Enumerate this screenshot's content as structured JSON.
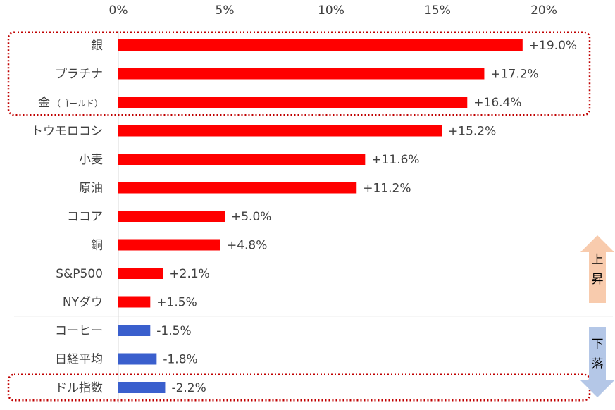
{
  "chart_data": {
    "type": "bar",
    "orientation": "horizontal",
    "x_ticks": [
      "0%",
      "5%",
      "10%",
      "15%",
      "20%"
    ],
    "xlim": [
      0,
      22.5
    ],
    "tick_values": [
      0,
      5,
      10,
      15,
      20
    ],
    "categories": [
      {
        "label": "銀",
        "suffix": "",
        "value": 19.0,
        "data_label": "+19.0%",
        "group": "up"
      },
      {
        "label": "プラチナ",
        "suffix": "",
        "value": 17.2,
        "data_label": "+17.2%",
        "group": "up"
      },
      {
        "label": "金",
        "suffix": "（ゴールド）",
        "value": 16.4,
        "data_label": "+16.4%",
        "group": "up"
      },
      {
        "label": "トウモロコシ",
        "suffix": "",
        "value": 15.2,
        "data_label": "+15.2%",
        "group": "up"
      },
      {
        "label": "小麦",
        "suffix": "",
        "value": 11.6,
        "data_label": "+11.6%",
        "group": "up"
      },
      {
        "label": "原油",
        "suffix": "",
        "value": 11.2,
        "data_label": "+11.2%",
        "group": "up"
      },
      {
        "label": "ココア",
        "suffix": "",
        "value": 5.0,
        "data_label": "+5.0%",
        "group": "up"
      },
      {
        "label": "銅",
        "suffix": "",
        "value": 4.8,
        "data_label": "+4.8%",
        "group": "up"
      },
      {
        "label": "S&P500",
        "suffix": "",
        "value": 2.1,
        "data_label": "+2.1%",
        "group": "up"
      },
      {
        "label": "NYダウ",
        "suffix": "",
        "value": 1.5,
        "data_label": "+1.5%",
        "group": "up"
      },
      {
        "label": "コーヒー",
        "suffix": "",
        "value": -1.5,
        "data_label": "-1.5%",
        "group": "down"
      },
      {
        "label": "日経平均",
        "suffix": "",
        "value": -1.8,
        "data_label": "-1.8%",
        "group": "down"
      },
      {
        "label": "ドル指数",
        "suffix": "",
        "value": -2.2,
        "data_label": "-2.2%",
        "group": "down"
      }
    ],
    "bar_length_note": "bars are drawn by absolute value to the right of zero",
    "colors": {
      "up": "#ff0000",
      "down": "#3a5fcd",
      "highlight_border": "#c00000",
      "arrow_up": "#f8cbad",
      "arrow_down": "#b4c7e7",
      "divider": "#d9d9d9"
    },
    "highlights": [
      {
        "from_index": 0,
        "to_index": 2
      },
      {
        "from_index": 12,
        "to_index": 12
      }
    ],
    "arrows": {
      "up_text": [
        "上",
        "昇"
      ],
      "down_text": [
        "下",
        "落"
      ]
    },
    "grid": false,
    "legend": "none"
  }
}
